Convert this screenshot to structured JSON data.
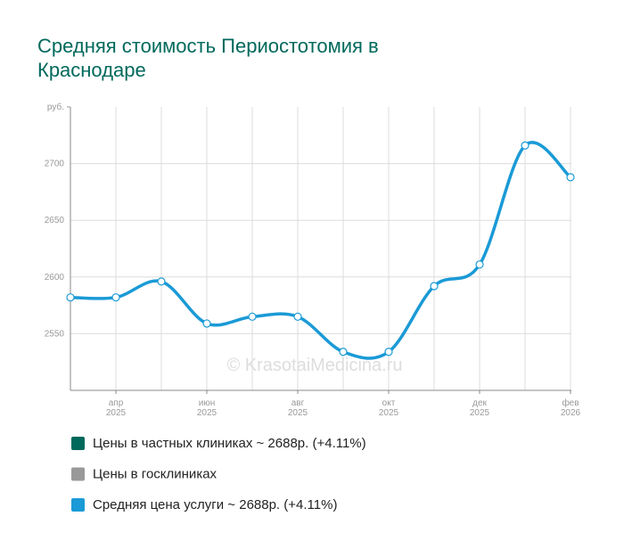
{
  "chart_data": {
    "type": "line",
    "title": "Средняя стоимость Периостотомия в Краснодаре",
    "annotation": "© KrasotaiMedicina.ru",
    "categories": [
      null,
      [
        "апр",
        "2025"
      ],
      null,
      [
        "июн",
        "2025"
      ],
      null,
      [
        "авг",
        "2025"
      ],
      null,
      [
        "окт",
        "2025"
      ],
      null,
      [
        "дек",
        "2025"
      ],
      null,
      [
        "фев",
        "2026"
      ]
    ],
    "values": [
      2582,
      2582,
      2596,
      2559,
      2565,
      2565,
      2534,
      2534,
      2592,
      2611,
      2716,
      2688
    ],
    "color": "#1a9ad6",
    "ylim": [
      2500,
      2750
    ],
    "yticks": [
      2550,
      2600,
      2650,
      2700,
      {
        "value": 2750,
        "label": "руб."
      }
    ],
    "grid": true,
    "legend": [
      {
        "name": "Цены в частных клиниках ~ 2688р. (+4.11%)",
        "color": "#00695c"
      },
      {
        "name": "Цены в госклиниках",
        "color": "#999999"
      },
      {
        "name": "Средняя цена услуги ~ 2688р. (+4.11%)",
        "color": "#1a9ad6"
      }
    ]
  }
}
